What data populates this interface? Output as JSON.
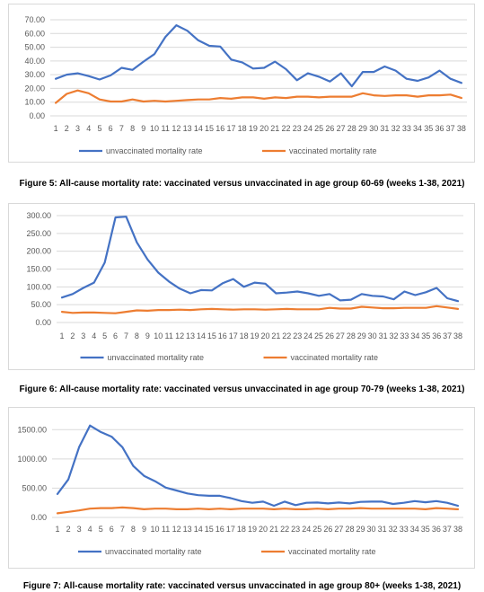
{
  "colors": {
    "unvaccinated": "#4472C4",
    "vaccinated": "#ED7D31",
    "grid": "#d9d9d9",
    "text": "#595959"
  },
  "chart_data": [
    {
      "type": "line",
      "caption": "Figure 5: All-cause mortality rate: vaccinated versus unvaccinated in age group 60-69 (weeks 1-38, 2021)",
      "x": [
        1,
        2,
        3,
        4,
        5,
        6,
        7,
        8,
        9,
        10,
        11,
        12,
        13,
        14,
        15,
        16,
        17,
        18,
        19,
        20,
        21,
        22,
        23,
        24,
        25,
        26,
        27,
        28,
        29,
        30,
        31,
        32,
        33,
        34,
        35,
        36,
        37,
        38
      ],
      "y_ticks": [
        "0.00",
        "10.00",
        "20.00",
        "30.00",
        "40.00",
        "50.00",
        "60.00",
        "70.00"
      ],
      "ylim": [
        0,
        70
      ],
      "grid": true,
      "legend_position": "bottom",
      "series": [
        {
          "name": "unvaccinated mortality rate",
          "color": "#4472C4",
          "values": [
            27,
            30,
            31,
            29,
            26.5,
            29.5,
            35,
            33.5,
            39.5,
            45,
            57.5,
            66,
            62,
            55,
            51,
            50.5,
            41,
            39,
            34.5,
            35,
            39.5,
            34,
            26,
            31,
            28.5,
            25,
            31,
            21.5,
            32,
            32,
            36,
            33,
            27,
            25.5,
            28,
            33,
            27,
            24
          ]
        },
        {
          "name": "vaccinated mortality rate",
          "color": "#ED7D31",
          "values": [
            9.5,
            16,
            18.5,
            16.5,
            12,
            10.5,
            10.5,
            12,
            10.5,
            11,
            10.5,
            11,
            11.5,
            12,
            12,
            13,
            12.5,
            13.5,
            13.5,
            12.5,
            13.5,
            13,
            14,
            14,
            13.5,
            14,
            14,
            14,
            16.5,
            15,
            14.5,
            15,
            15,
            14,
            15,
            15,
            15.5,
            13
          ]
        }
      ]
    },
    {
      "type": "line",
      "caption": "Figure 6: All-cause mortality rate: vaccinated versus unvaccinated in age group 70-79 (weeks 1-38, 2021)",
      "x": [
        1,
        2,
        3,
        4,
        5,
        6,
        7,
        8,
        9,
        10,
        11,
        12,
        13,
        14,
        15,
        16,
        17,
        18,
        19,
        20,
        21,
        22,
        23,
        24,
        25,
        26,
        27,
        28,
        29,
        30,
        31,
        32,
        33,
        34,
        35,
        36,
        37,
        38
      ],
      "y_ticks": [
        "0.00",
        "50.00",
        "100.00",
        "150.00",
        "200.00",
        "250.00",
        "300.00"
      ],
      "ylim": [
        0,
        300
      ],
      "grid": true,
      "legend_position": "bottom",
      "series": [
        {
          "name": "unvaccinated mortality rate",
          "color": "#4472C4",
          "values": [
            70,
            80,
            97,
            112,
            168,
            295,
            297,
            225,
            177,
            140,
            115,
            95,
            82,
            91,
            90,
            110,
            122,
            100,
            112,
            109,
            82,
            84,
            87,
            82,
            75,
            80,
            62,
            64,
            80,
            75,
            73,
            65,
            87,
            77,
            85,
            97,
            68,
            60
          ]
        },
        {
          "name": "vaccinated mortality rate",
          "color": "#ED7D31",
          "values": [
            30,
            27,
            28,
            28,
            27,
            26,
            30,
            34,
            33,
            35,
            35,
            36,
            35,
            37,
            38,
            37,
            36,
            37,
            37,
            36,
            37,
            38,
            37,
            37,
            37,
            41,
            39,
            39,
            44,
            42,
            40,
            40,
            41,
            41,
            41,
            46,
            42,
            38
          ]
        }
      ]
    },
    {
      "type": "line",
      "caption": "Figure 7: All-cause mortality rate: vaccinated versus unvaccinated in age group 80+ (weeks 1-38, 2021)",
      "x": [
        1,
        2,
        3,
        4,
        5,
        6,
        7,
        8,
        9,
        10,
        11,
        12,
        13,
        14,
        15,
        16,
        17,
        18,
        19,
        20,
        21,
        22,
        23,
        24,
        25,
        26,
        27,
        28,
        29,
        30,
        31,
        32,
        33,
        34,
        35,
        36,
        37,
        38
      ],
      "y_ticks": [
        "0.00",
        "500.00",
        "1000.00",
        "1500.00"
      ],
      "ylim": [
        0,
        1750
      ],
      "grid": true,
      "legend_position": "bottom",
      "series": [
        {
          "name": "unvaccinated mortality rate",
          "color": "#4472C4",
          "values": [
            400,
            650,
            1200,
            1570,
            1460,
            1380,
            1200,
            880,
            710,
            620,
            510,
            460,
            410,
            380,
            370,
            370,
            330,
            280,
            250,
            270,
            200,
            270,
            210,
            250,
            255,
            240,
            255,
            240,
            265,
            270,
            270,
            230,
            250,
            280,
            260,
            280,
            250,
            200
          ]
        },
        {
          "name": "vaccinated mortality rate",
          "color": "#ED7D31",
          "values": [
            70,
            95,
            120,
            150,
            160,
            160,
            170,
            160,
            140,
            150,
            150,
            140,
            140,
            150,
            140,
            150,
            140,
            150,
            150,
            150,
            140,
            150,
            140,
            140,
            150,
            140,
            150,
            150,
            160,
            150,
            150,
            150,
            150,
            150,
            140,
            160,
            150,
            140
          ]
        }
      ]
    }
  ]
}
